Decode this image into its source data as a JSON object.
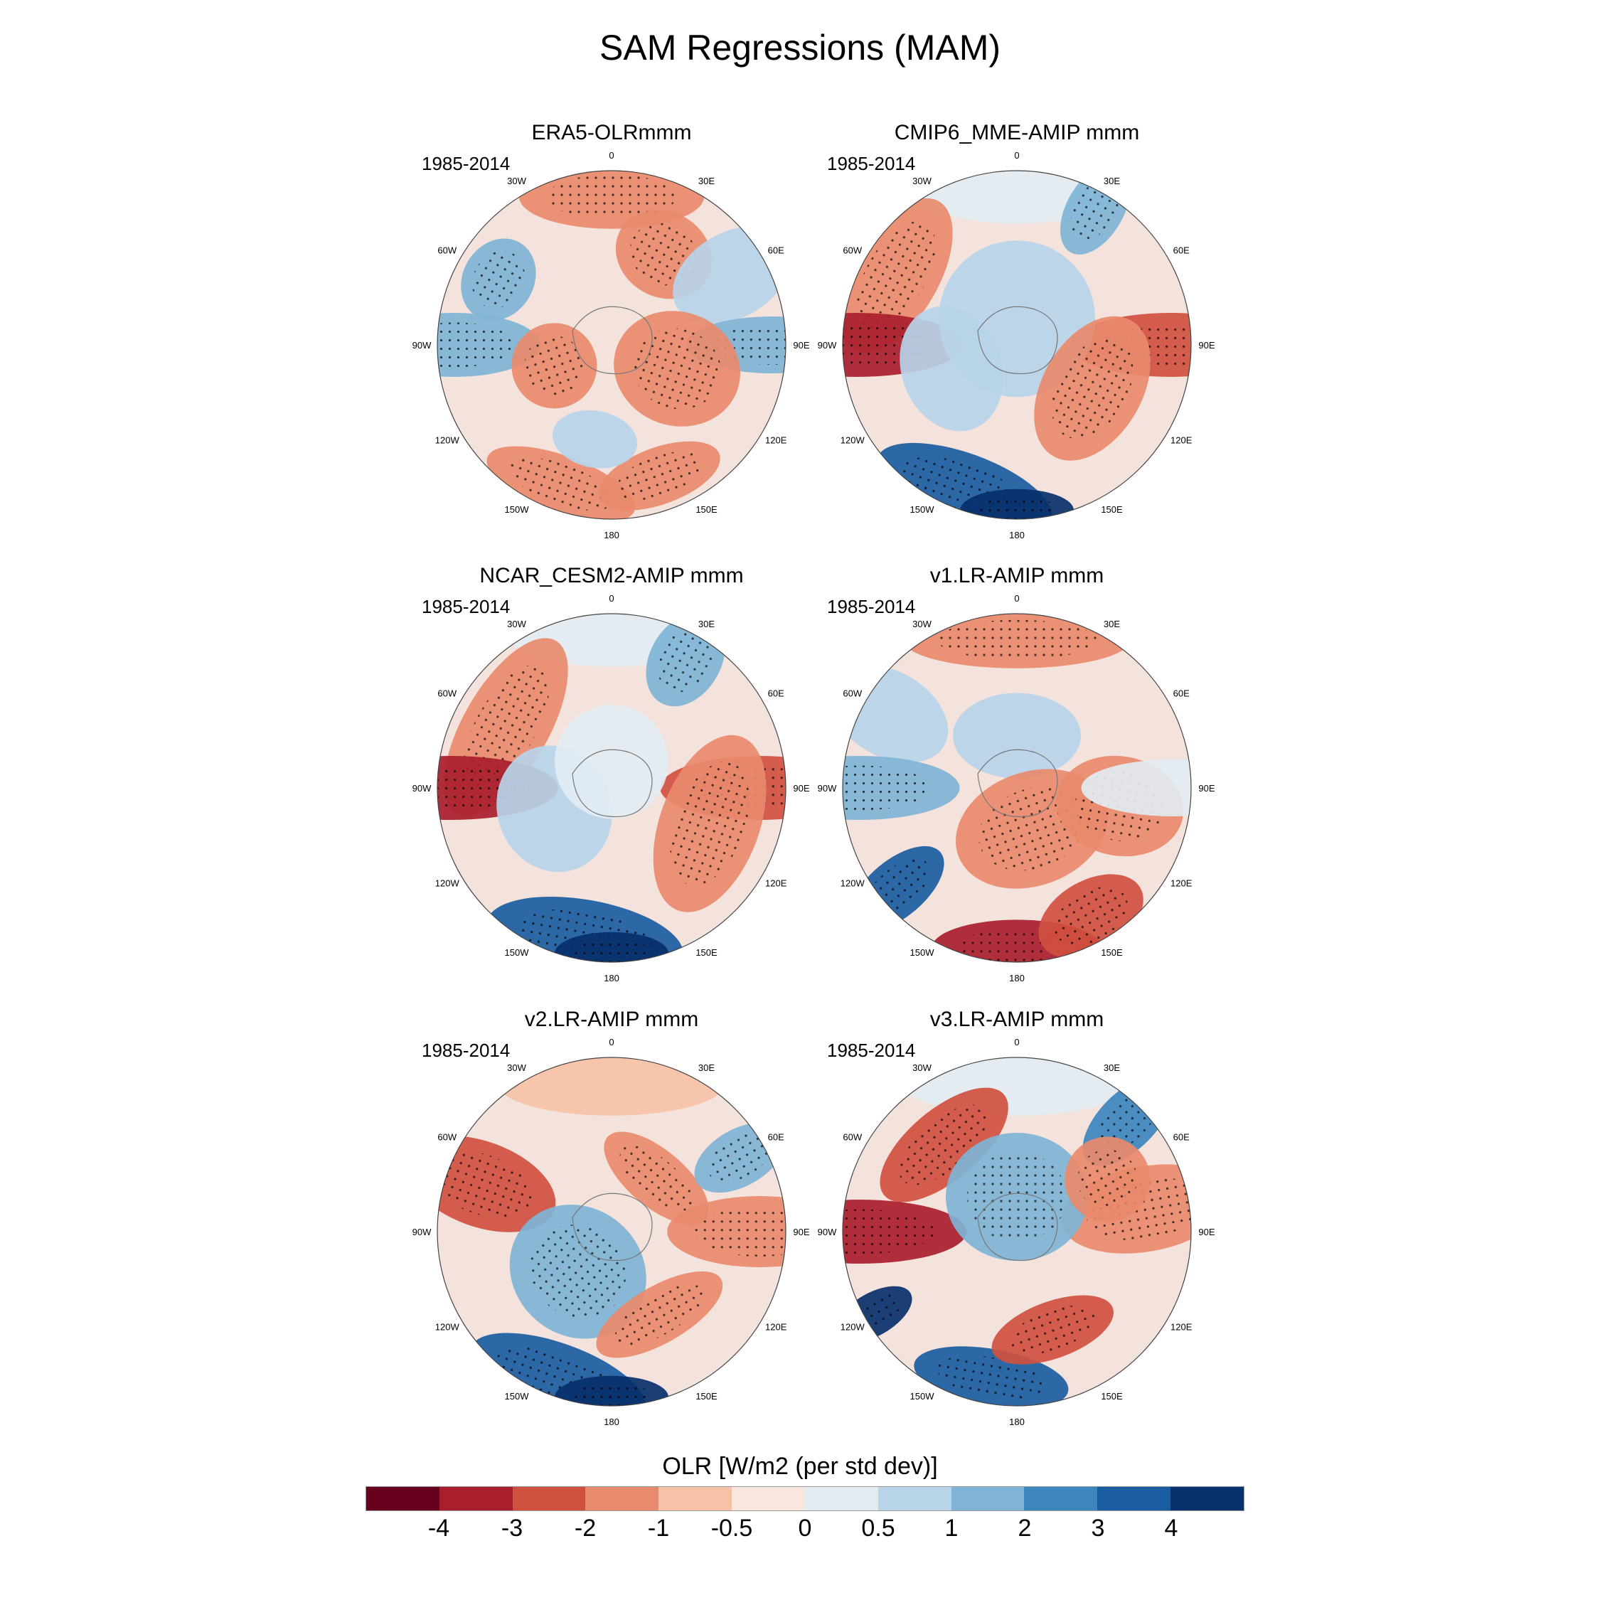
{
  "title": "SAM Regressions (MAM)",
  "panels": [
    {
      "title": "ERA5-OLRmmm",
      "period": "1985-2014"
    },
    {
      "title": "CMIP6_MME-AMIP  mmm",
      "period": "1985-2014"
    },
    {
      "title": "NCAR_CESM2-AMIP  mmm",
      "period": "1985-2014"
    },
    {
      "title": "v1.LR-AMIP  mmm",
      "period": "1985-2014"
    },
    {
      "title": "v2.LR-AMIP  mmm",
      "period": "1985-2014"
    },
    {
      "title": "v3.LR-AMIP  mmm",
      "period": "1985-2014"
    }
  ],
  "map_labels": [
    "0",
    "30E",
    "60E",
    "90E",
    "120E",
    "150E",
    "180",
    "150W",
    "120W",
    "90W",
    "60W",
    "30W"
  ],
  "colorbar": {
    "title": "OLR [W/m2 (per std dev)]",
    "ticks": [
      "-4",
      "-3",
      "-2",
      "-1",
      "-0.5",
      "0",
      "0.5",
      "1",
      "2",
      "3",
      "4"
    ],
    "colors": [
      "#67001f",
      "#a91e2c",
      "#d0503f",
      "#e88a6d",
      "#f6c1a7",
      "#f8e6df",
      "#e2ebf2",
      "#b7d4e8",
      "#7fb4d6",
      "#3c85bd",
      "#1a5ca1",
      "#08306b"
    ]
  }
}
